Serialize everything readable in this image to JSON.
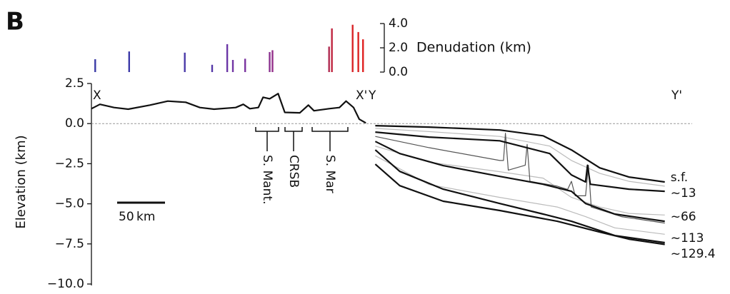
{
  "panel": "B",
  "chart_data": [
    {
      "type": "line",
      "y_label": "Elevation (km)",
      "xlim": [
        0,
        637
      ],
      "ylim": [
        -10,
        2.5
      ],
      "yticks": [
        {
          "value": 2.5,
          "label": "2.5"
        },
        {
          "value": 0,
          "label": "0.0"
        },
        {
          "value": -2.5,
          "label": "−2.5"
        },
        {
          "value": -5,
          "label": "−5.0"
        },
        {
          "value": -7.5,
          "label": "−7.5"
        },
        {
          "value": -10,
          "label": "−10.0"
        }
      ],
      "zero_line": true,
      "scale_bar": "50 km",
      "profile_labels": [
        "X",
        "X'",
        "Y",
        "Y'"
      ],
      "annotations": [
        "S. Mant.",
        "CRSB",
        "S. Mar"
      ],
      "series": [
        {
          "color": "#111111",
          "x": [
            0,
            9,
            24,
            39,
            62,
            81,
            100,
            115,
            130,
            153,
            161,
            168,
            177,
            182,
            189,
            198,
            205,
            221,
            230,
            236,
            252,
            263,
            270,
            278,
            284,
            291
          ],
          "values": [
            0.93,
            1.2,
            1.0,
            0.9,
            1.15,
            1.4,
            1.33,
            1.0,
            0.9,
            1.0,
            1.2,
            0.93,
            1.0,
            1.64,
            1.55,
            1.87,
            0.7,
            0.67,
            1.15,
            0.8,
            0.93,
            1.0,
            1.4,
            1.0,
            0.27,
            0.04
          ]
        },
        {
          "color": "#bbbbbb",
          "x": [
            301,
            358,
            433,
            486,
            509,
            539,
            570,
            608
          ],
          "values": [
            -0.3,
            -0.5,
            -0.8,
            -1.4,
            -2.3,
            -3.1,
            -3.6,
            -3.9
          ]
        },
        {
          "color": "#bbbbbb",
          "x": [
            301,
            358,
            433,
            479,
            509,
            539,
            570,
            608
          ],
          "values": [
            -1.4,
            -2.4,
            -3.0,
            -3.4,
            -4.6,
            -5.2,
            -5.6,
            -5.7
          ]
        },
        {
          "color": "#bbbbbb",
          "x": [
            301,
            358,
            433,
            494,
            524,
            555,
            608
          ],
          "values": [
            -2.0,
            -3.8,
            -4.6,
            -5.2,
            -5.8,
            -6.5,
            -6.9
          ]
        },
        {
          "color": "#555555",
          "x": [
            301,
            358,
            433,
            437,
            439,
            442,
            460,
            462,
            465,
            494,
            505,
            509,
            513,
            524,
            527,
            530,
            562,
            608
          ],
          "values": [
            -0.8,
            -1.5,
            -2.3,
            -2.3,
            -0.6,
            -2.9,
            -2.6,
            -1.3,
            -3.6,
            -3.9,
            -4.1,
            -3.6,
            -4.5,
            -4.5,
            -2.6,
            -5.2,
            -5.8,
            -6.2
          ]
        },
        {
          "name": "s.f.",
          "color": "#111111",
          "x": [
            301,
            358,
            433,
            479,
            509,
            539,
            570,
            608
          ],
          "values": [
            -0.13,
            -0.22,
            -0.4,
            -0.76,
            -1.64,
            -2.76,
            -3.33,
            -3.64
          ]
        },
        {
          "name": "~13",
          "color": "#111111",
          "x": [
            301,
            358,
            433,
            486,
            509,
            524,
            526,
            529,
            570,
            608
          ],
          "values": [
            -0.53,
            -0.84,
            -1.07,
            -1.87,
            -3.2,
            -3.64,
            -2.6,
            -3.78,
            -4.09,
            -4.22
          ]
        },
        {
          "name": "~66",
          "color": "#111111",
          "x": [
            301,
            327,
            373,
            433,
            479,
            509,
            524,
            555,
            608
          ],
          "values": [
            -1.11,
            -1.87,
            -2.62,
            -3.29,
            -3.78,
            -4.22,
            -4.98,
            -5.64,
            -6.09
          ]
        },
        {
          "name": "~113",
          "color": "#111111",
          "x": [
            301,
            327,
            373,
            433,
            479,
            509,
            555,
            608
          ],
          "values": [
            -1.64,
            -2.98,
            -4.09,
            -4.98,
            -5.64,
            -6.09,
            -6.98,
            -7.42
          ]
        },
        {
          "name": "~129.4",
          "color": "#111111",
          "x": [
            301,
            327,
            373,
            433,
            494,
            539,
            570,
            608
          ],
          "values": [
            -2.53,
            -3.87,
            -4.84,
            -5.42,
            -6.09,
            -6.76,
            -7.2,
            -7.53
          ]
        }
      ]
    },
    {
      "type": "bar",
      "y_label": "Denudation (km)",
      "xlim": [
        0,
        637
      ],
      "ylim": [
        0,
        4
      ],
      "yticks": [
        {
          "value": 0,
          "label": "0.0"
        },
        {
          "value": 2,
          "label": "2.0"
        },
        {
          "value": 4,
          "label": "4.0"
        }
      ],
      "x": [
        4,
        40,
        99,
        128,
        144,
        150,
        163,
        189,
        192,
        252,
        255,
        277,
        283,
        288
      ],
      "values": [
        1.06,
        1.7,
        1.6,
        0.6,
        2.3,
        1.0,
        1.1,
        1.65,
        1.8,
        2.1,
        3.6,
        3.9,
        3.3,
        2.7
      ],
      "colors": [
        "#3b3ba6",
        "#3d3aa8",
        "#4a3aa8",
        "#5538a8",
        "#6a36a6",
        "#7236a4",
        "#7a34a0",
        "#8a3290",
        "#94308a",
        "#b02a50",
        "#c02640",
        "#d82428",
        "#dc2424",
        "#e02020"
      ]
    }
  ]
}
